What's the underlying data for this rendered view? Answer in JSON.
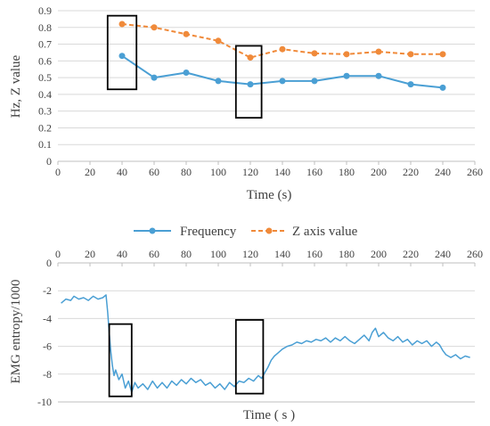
{
  "chart_data": [
    {
      "type": "line",
      "xlabel": "Time (s)",
      "ylabel": "Hz, Z value",
      "xlim": [
        0,
        260
      ],
      "ylim": [
        0,
        0.9
      ],
      "xticks": [
        "0",
        "20",
        "40",
        "60",
        "80",
        "100",
        "120",
        "140",
        "160",
        "180",
        "200",
        "220",
        "240",
        "260"
      ],
      "yticks": [
        "0",
        "0.1",
        "0.2",
        "0.3",
        "0.4",
        "0.5",
        "0.6",
        "0.7",
        "0.8",
        "0.9"
      ],
      "grid": "horizontal",
      "legend_position": "bottom",
      "x": [
        40,
        60,
        80,
        100,
        120,
        140,
        160,
        180,
        200,
        220,
        240
      ],
      "series": [
        {
          "name": "Frequency",
          "color": "#4a9fd4",
          "line_style": "solid",
          "values": [
            0.63,
            0.5,
            0.53,
            0.48,
            0.46,
            0.48,
            0.48,
            0.51,
            0.51,
            0.46,
            0.44
          ]
        },
        {
          "name": "Z axis value",
          "color": "#f08a3a",
          "line_style": "dashed",
          "values": [
            0.82,
            0.8,
            0.76,
            0.72,
            0.62,
            0.67,
            0.645,
            0.64,
            0.655,
            0.64,
            0.64
          ]
        }
      ],
      "highlight_boxes": [
        {
          "x": [
            31,
            49
          ],
          "y": [
            0.43,
            0.87
          ]
        },
        {
          "x": [
            111,
            127
          ],
          "y": [
            0.26,
            0.69
          ]
        }
      ]
    },
    {
      "type": "line",
      "xlabel": "Time ( s )",
      "ylabel": "EMG entropy/1000",
      "xlim": [
        0,
        260
      ],
      "ylim": [
        -10,
        0
      ],
      "xticks": [
        "0",
        "20",
        "40",
        "60",
        "80",
        "100",
        "120",
        "140",
        "160",
        "180",
        "200",
        "220",
        "240",
        "260"
      ],
      "yticks": [
        "0",
        "-2",
        "-4",
        "-6",
        "-8",
        "-10"
      ],
      "x_axis_position": "top",
      "grid": "horizontal",
      "series": [
        {
          "color": "#4a9fd4",
          "line_style": "solid",
          "points": [
            [
              2,
              -2.9
            ],
            [
              5,
              -2.6
            ],
            [
              8,
              -2.7
            ],
            [
              10,
              -2.4
            ],
            [
              13,
              -2.6
            ],
            [
              16,
              -2.5
            ],
            [
              19,
              -2.7
            ],
            [
              22,
              -2.4
            ],
            [
              25,
              -2.6
            ],
            [
              28,
              -2.5
            ],
            [
              30,
              -2.3
            ],
            [
              31,
              -3.5
            ],
            [
              32,
              -5.0
            ],
            [
              33,
              -6.4
            ],
            [
              34,
              -7.4
            ],
            [
              35,
              -8.1
            ],
            [
              36,
              -7.7
            ],
            [
              38,
              -8.4
            ],
            [
              40,
              -8.0
            ],
            [
              42,
              -9.0
            ],
            [
              44,
              -8.5
            ],
            [
              46,
              -9.3
            ],
            [
              48,
              -8.6
            ],
            [
              50,
              -9.0
            ],
            [
              53,
              -8.7
            ],
            [
              56,
              -9.1
            ],
            [
              59,
              -8.5
            ],
            [
              62,
              -9.0
            ],
            [
              65,
              -8.6
            ],
            [
              68,
              -9.0
            ],
            [
              71,
              -8.5
            ],
            [
              74,
              -8.8
            ],
            [
              77,
              -8.4
            ],
            [
              80,
              -8.7
            ],
            [
              83,
              -8.3
            ],
            [
              86,
              -8.6
            ],
            [
              89,
              -8.4
            ],
            [
              92,
              -8.8
            ],
            [
              95,
              -8.6
            ],
            [
              98,
              -9.0
            ],
            [
              101,
              -8.7
            ],
            [
              104,
              -9.1
            ],
            [
              107,
              -8.6
            ],
            [
              110,
              -8.9
            ],
            [
              113,
              -8.5
            ],
            [
              116,
              -8.6
            ],
            [
              119,
              -8.3
            ],
            [
              122,
              -8.5
            ],
            [
              125,
              -8.1
            ],
            [
              127,
              -8.3
            ],
            [
              129,
              -7.9
            ],
            [
              131,
              -7.5
            ],
            [
              133,
              -7.0
            ],
            [
              135,
              -6.7
            ],
            [
              137,
              -6.5
            ],
            [
              140,
              -6.2
            ],
            [
              143,
              -6.0
            ],
            [
              146,
              -5.9
            ],
            [
              149,
              -5.7
            ],
            [
              152,
              -5.8
            ],
            [
              155,
              -5.6
            ],
            [
              158,
              -5.7
            ],
            [
              161,
              -5.5
            ],
            [
              164,
              -5.6
            ],
            [
              167,
              -5.4
            ],
            [
              170,
              -5.7
            ],
            [
              173,
              -5.4
            ],
            [
              176,
              -5.6
            ],
            [
              179,
              -5.3
            ],
            [
              182,
              -5.6
            ],
            [
              185,
              -5.8
            ],
            [
              188,
              -5.5
            ],
            [
              191,
              -5.2
            ],
            [
              194,
              -5.6
            ],
            [
              196,
              -5.0
            ],
            [
              198,
              -4.7
            ],
            [
              200,
              -5.3
            ],
            [
              203,
              -5.0
            ],
            [
              206,
              -5.4
            ],
            [
              209,
              -5.6
            ],
            [
              212,
              -5.3
            ],
            [
              215,
              -5.7
            ],
            [
              218,
              -5.5
            ],
            [
              221,
              -5.9
            ],
            [
              224,
              -5.6
            ],
            [
              227,
              -5.8
            ],
            [
              230,
              -5.6
            ],
            [
              233,
              -6.0
            ],
            [
              236,
              -5.7
            ],
            [
              238,
              -5.9
            ],
            [
              240,
              -6.3
            ],
            [
              242,
              -6.6
            ],
            [
              245,
              -6.8
            ],
            [
              248,
              -6.6
            ],
            [
              251,
              -6.9
            ],
            [
              254,
              -6.7
            ],
            [
              257,
              -6.8
            ]
          ]
        }
      ],
      "highlight_boxes": [
        {
          "x": [
            32,
            46
          ],
          "y": [
            -9.6,
            -4.4
          ]
        },
        {
          "x": [
            111,
            128
          ],
          "y": [
            -9.4,
            -4.1
          ]
        }
      ]
    }
  ]
}
